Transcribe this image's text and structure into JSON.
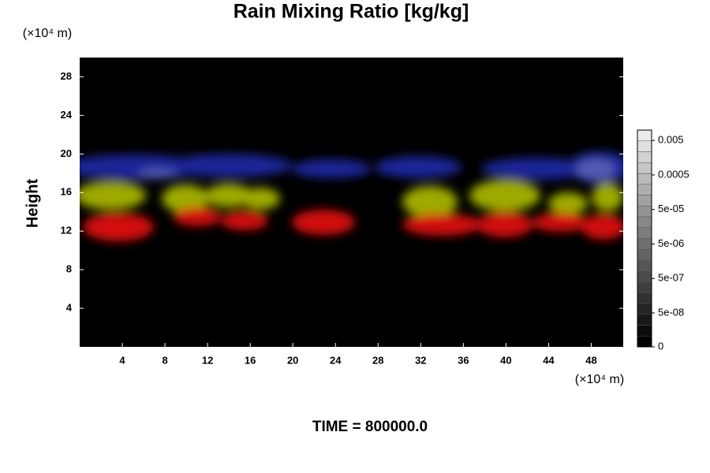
{
  "chart_data": {
    "type": "heatmap",
    "title": "Rain Mixing Ratio [kg/kg]",
    "y_unit_label": "(×10⁴ m)",
    "x_unit_label": "(×10⁴ m)",
    "y_label": "Height",
    "annotation": "TIME = 800000.0",
    "xlim": [
      0,
      51
    ],
    "xticks": [
      4,
      8,
      12,
      16,
      20,
      24,
      28,
      32,
      36,
      40,
      44,
      48
    ],
    "ylim": [
      0,
      30
    ],
    "yticks": [
      4,
      8,
      12,
      16,
      20,
      24,
      28
    ],
    "colorbar_scale": "log",
    "clim": [
      0,
      0.01
    ],
    "colorbar_ticks": [
      0,
      {
        "value": 5e-08,
        "label": "5e-08"
      },
      {
        "value": 5e-07,
        "label": "5e-07"
      },
      {
        "value": 5e-06,
        "label": "5e-06"
      },
      {
        "value": 5e-05,
        "label": "5e-05"
      },
      0.0005,
      0.005
    ]
  }
}
